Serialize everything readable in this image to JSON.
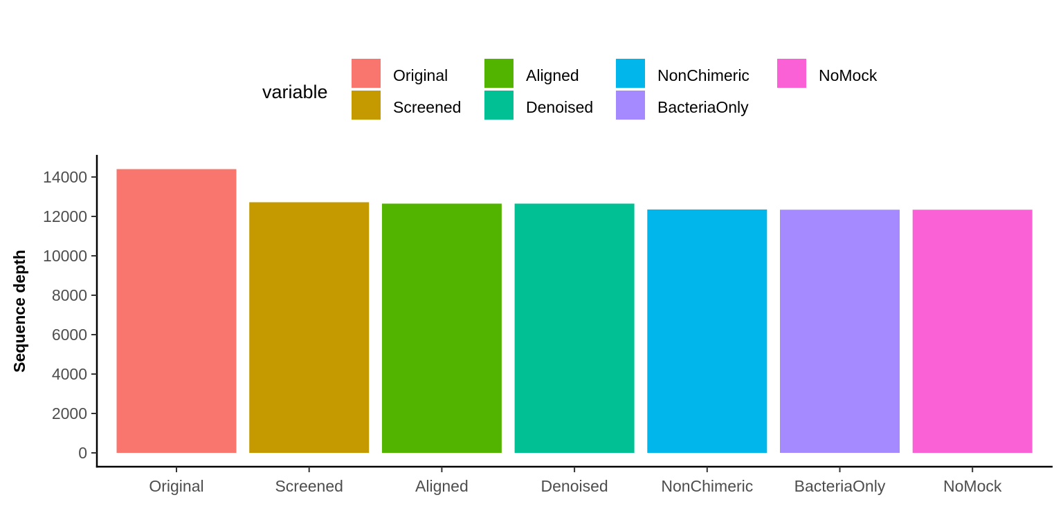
{
  "chart_data": {
    "type": "bar",
    "categories": [
      "Original",
      "Screened",
      "Aligned",
      "Denoised",
      "NonChimeric",
      "BacteriaOnly",
      "NoMock"
    ],
    "values": [
      14400,
      12720,
      12650,
      12650,
      12350,
      12340,
      12340
    ],
    "colors": [
      "#F8766D",
      "#C49A00",
      "#53B400",
      "#00C094",
      "#00B6EB",
      "#A58AFF",
      "#FB61D7"
    ],
    "title": "",
    "xlabel": "",
    "ylabel": "Sequence depth",
    "ylim": [
      0,
      14400
    ],
    "yticks": [
      0,
      2000,
      4000,
      6000,
      8000,
      10000,
      12000,
      14000
    ],
    "grid": false,
    "legend": {
      "title": "variable",
      "position": "top",
      "entries": [
        "Original",
        "Screened",
        "Aligned",
        "Denoised",
        "NonChimeric",
        "BacteriaOnly",
        "NoMock"
      ]
    }
  }
}
